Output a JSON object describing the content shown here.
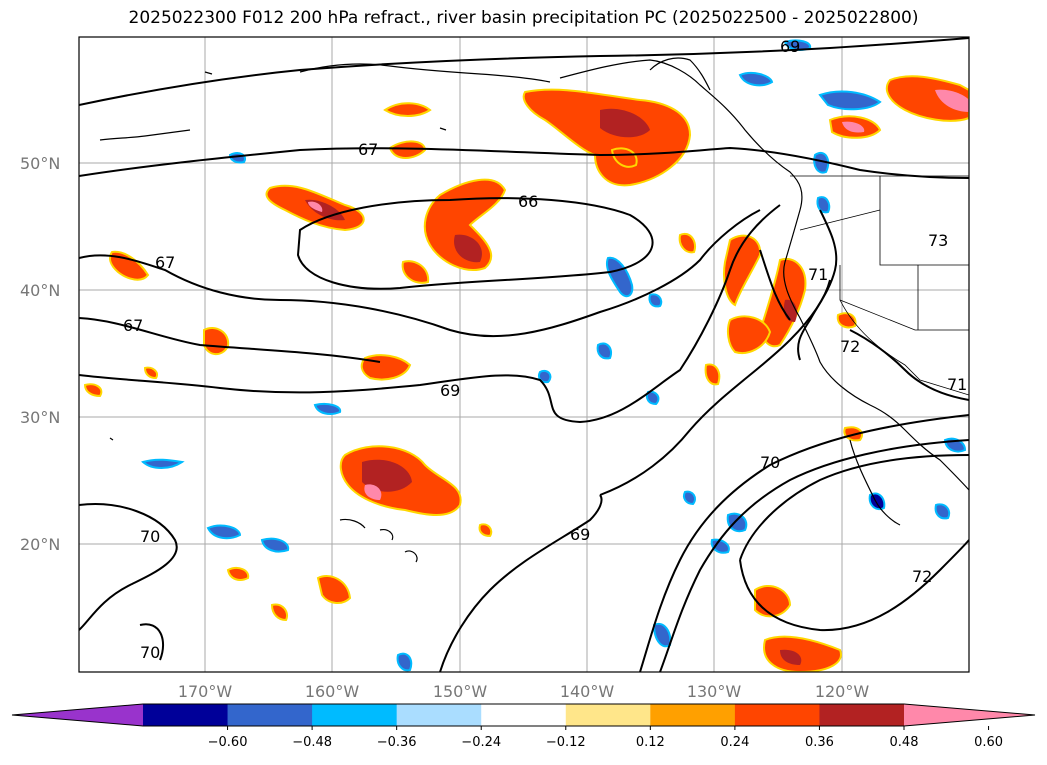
{
  "title": "2025022300 F012 200 hPa refract., river basin precipitation PC (2025022500 - 2025022800)",
  "map": {
    "lat_labels": [
      "50°N",
      "40°N",
      "30°N",
      "20°N"
    ],
    "lon_labels": [
      "170°W",
      "160°W",
      "150°W",
      "140°W",
      "130°W",
      "120°W"
    ],
    "contour_labels": [
      "69",
      "67",
      "66",
      "67",
      "67",
      "69",
      "73",
      "71",
      "72",
      "71",
      "70",
      "69",
      "70",
      "72",
      "70"
    ]
  },
  "colorbar": {
    "colors": [
      "#9933cc",
      "#000099",
      "#3366cc",
      "#00bbff",
      "#aaddff",
      "#ffffff",
      "#ffe68a",
      "#ffa000",
      "#ff4500",
      "#b22222",
      "#ff88aa"
    ],
    "labels": [
      "−0.60",
      "−0.48",
      "−0.36",
      "−0.24",
      "−0.12",
      "0.12",
      "0.24",
      "0.36",
      "0.48",
      "0.60"
    ]
  }
}
